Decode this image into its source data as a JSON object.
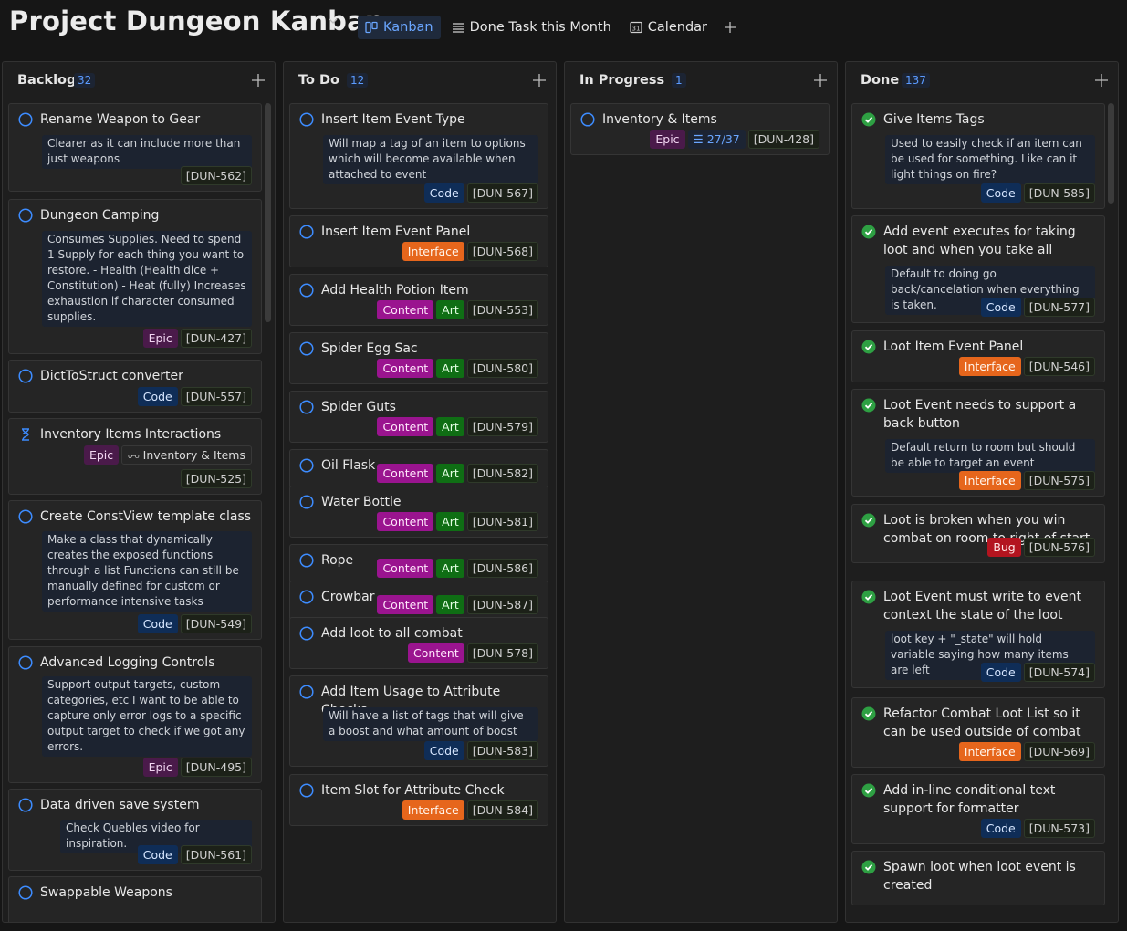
{
  "header": {
    "title": "Project Dungeon Kanban",
    "tabs": [
      {
        "label": "Kanban",
        "icon": "board-icon",
        "active": true
      },
      {
        "label": "Done Task this Month",
        "icon": "list-icon",
        "active": false
      },
      {
        "label": "Calendar",
        "icon": "calendar-icon",
        "active": false
      }
    ]
  },
  "colors": {
    "accent": "#6aa6ff",
    "open_status": "#3d8cff",
    "done_status": "#2ea043",
    "code": "#0f2d57",
    "interface": "#e6661c",
    "content": "#9a148f",
    "art": "#0f6e14",
    "epic": "#4a1a4a",
    "bug": "#b3141f"
  },
  "columns": [
    {
      "title": "Backlog",
      "count": "32",
      "cards": [
        {
          "status": "open",
          "title": "Rename Weapon to Gear",
          "desc": "Clearer as it can include more than just weapons",
          "chips": [],
          "id": "[DUN-562]"
        },
        {
          "status": "open",
          "title": "Dungeon Camping",
          "desc": "Consumes Supplies. Need to spend 1 Supply for each thing you want to restore. - Health (Health dice + Constitution) - Heat (fully) Increases exhaustion if character consumed supplies.",
          "chips": [
            "Epic"
          ],
          "id": "[DUN-427]"
        },
        {
          "status": "open",
          "title": "DictToStruct converter",
          "desc": "",
          "chips": [
            "Code"
          ],
          "id": "[DUN-557]"
        },
        {
          "status": "waiting",
          "title": "Inventory Items Interactions",
          "desc": "",
          "chips": [
            "Epic",
            "Inventory & Items"
          ],
          "id": "[DUN-525]"
        },
        {
          "status": "open",
          "title": "Create ConstView template class",
          "desc": "Make a class that dynamically creates the exposed functions through a list Functions can still be manually defined for custom or performance intensive tasks",
          "chips": [
            "Code"
          ],
          "id": "[DUN-549]"
        },
        {
          "status": "open",
          "title": "Advanced Logging Controls",
          "desc": "Support output targets, custom categories, etc I want to be able to capture only error logs to a specific output target to check if we got any errors.",
          "chips": [
            "Epic"
          ],
          "id": "[DUN-495]"
        },
        {
          "status": "open",
          "title": "Data driven save system",
          "desc": "Check Quebles video for inspiration.",
          "chips": [
            "Code"
          ],
          "id": "[DUN-561]"
        },
        {
          "status": "open",
          "title": "Swappable Weapons",
          "desc": "",
          "chips": [],
          "id": ""
        }
      ]
    },
    {
      "title": "To Do",
      "count": "12",
      "cards": [
        {
          "status": "open",
          "title": "Insert Item Event Type",
          "desc": "Will map a tag of an item to options which will become available when attached to event",
          "chips": [
            "Code"
          ],
          "id": "[DUN-567]"
        },
        {
          "status": "open",
          "title": "Insert Item Event Panel",
          "desc": "",
          "chips": [
            "Interface"
          ],
          "id": "[DUN-568]"
        },
        {
          "status": "open",
          "title": "Add Health Potion Item",
          "desc": "",
          "chips": [
            "Content",
            "Art"
          ],
          "id": "[DUN-553]"
        },
        {
          "status": "open",
          "title": "Spider Egg Sac",
          "desc": "",
          "chips": [
            "Content",
            "Art"
          ],
          "id": "[DUN-580]"
        },
        {
          "status": "open",
          "title": "Spider Guts",
          "desc": "",
          "chips": [
            "Content",
            "Art"
          ],
          "id": "[DUN-579]"
        },
        {
          "status": "open",
          "title": "Oil Flask",
          "desc": "",
          "chips": [
            "Content",
            "Art"
          ],
          "id": "[DUN-582]"
        },
        {
          "status": "open",
          "title": "Water Bottle",
          "desc": "",
          "chips": [
            "Content",
            "Art"
          ],
          "id": "[DUN-581]"
        },
        {
          "status": "open",
          "title": "Rope",
          "desc": "",
          "chips": [
            "Content",
            "Art"
          ],
          "id": "[DUN-586]"
        },
        {
          "status": "open",
          "title": "Crowbar",
          "desc": "",
          "chips": [
            "Content",
            "Art"
          ],
          "id": "[DUN-587]"
        },
        {
          "status": "open",
          "title": "Add loot to all combat",
          "desc": "",
          "chips": [
            "Content"
          ],
          "id": "[DUN-578]"
        },
        {
          "status": "open",
          "title": "Add Item Usage to Attribute Checks",
          "desc": "Will have a list of tags that will give a boost and what amount of boost",
          "chips": [
            "Code"
          ],
          "id": "[DUN-583]"
        },
        {
          "status": "open",
          "title": "Item Slot for Attribute Check",
          "desc": "",
          "chips": [
            "Interface"
          ],
          "id": "[DUN-584]"
        }
      ]
    },
    {
      "title": "In Progress",
      "count": "1",
      "cards": [
        {
          "status": "open",
          "title": "Inventory & Items",
          "desc": "",
          "chips": [
            "Epic",
            "27/37"
          ],
          "id": "[DUN-428]"
        }
      ]
    },
    {
      "title": "Done",
      "count": "137",
      "cards": [
        {
          "status": "done",
          "title": "Give Items Tags",
          "desc": "Used to easily check if an item can be used for something. Like can it light things on fire?",
          "chips": [
            "Code"
          ],
          "id": "[DUN-585]"
        },
        {
          "status": "done",
          "title": "Add event executes for taking loot and  when you take all",
          "desc": "Default to doing go back/cancelation when everything is taken.",
          "chips": [
            "Code"
          ],
          "id": "[DUN-577]"
        },
        {
          "status": "done",
          "title": "Loot Item Event Panel",
          "desc": "",
          "chips": [
            "Interface"
          ],
          "id": "[DUN-546]"
        },
        {
          "status": "done",
          "title": "Loot Event needs to support a back button",
          "desc": "Default return to room but should be able to target an event",
          "chips": [
            "Interface"
          ],
          "id": "[DUN-575]"
        },
        {
          "status": "done",
          "title": "Loot is broken when you win combat on room to right of start",
          "desc": "",
          "chips": [
            "Bug"
          ],
          "id": "[DUN-576]"
        },
        {
          "status": "done",
          "title": "Loot Event must write to event context the state of the loot",
          "desc": "loot key + \"_state\" will hold variable saying how many items are left",
          "chips": [
            "Code"
          ],
          "id": "[DUN-574]"
        },
        {
          "status": "done",
          "title": "Refactor Combat Loot List so it can be used outside of combat",
          "desc": "",
          "chips": [
            "Interface"
          ],
          "id": "[DUN-569]"
        },
        {
          "status": "done",
          "title": "Add in-line conditional text support for formatter",
          "desc": "",
          "chips": [
            "Code"
          ],
          "id": "[DUN-573]"
        },
        {
          "status": "done",
          "title": "Spawn loot when loot event is created",
          "desc": "",
          "chips": [],
          "id": ""
        }
      ]
    }
  ]
}
